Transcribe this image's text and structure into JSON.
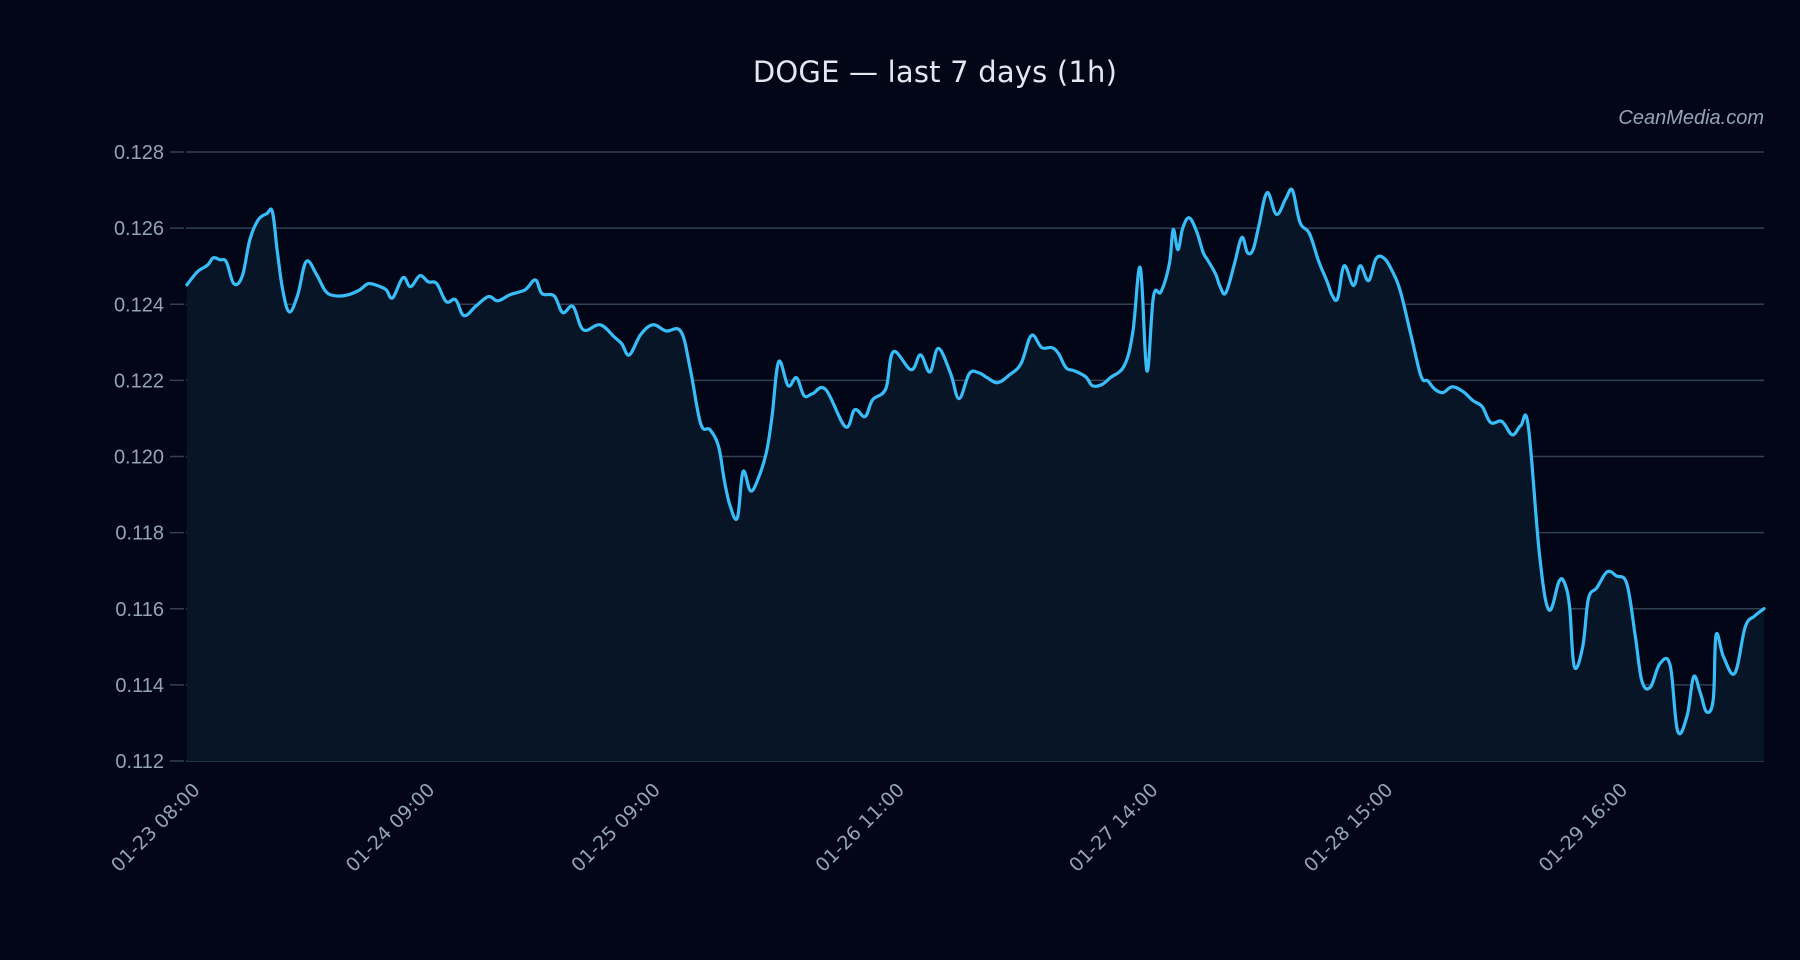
{
  "title": "DOGE — last 7 days (1h)",
  "watermark": "CeanMedia.com",
  "colors": {
    "background": "#020617",
    "line": "#38bdf8",
    "fill": "#081527",
    "grid": "#334155",
    "text": "#94a3b8",
    "title": "#e2e8f0"
  },
  "chart_data": {
    "type": "area",
    "title": "DOGE — last 7 days (1h)",
    "xlabel": "",
    "ylabel": "",
    "ylim": [
      0.112,
      0.128
    ],
    "yticks": [
      "0.112",
      "0.114",
      "0.116",
      "0.118",
      "0.120",
      "0.122",
      "0.124",
      "0.126",
      "0.128"
    ],
    "x_range_hours": [
      0,
      168
    ],
    "x_start": "01-23 08:00",
    "xticks": [
      {
        "label": "01-23 08:00",
        "hour": 0
      },
      {
        "label": "01-24 09:00",
        "hour": 25
      },
      {
        "label": "01-25 09:00",
        "hour": 49
      },
      {
        "label": "01-26 11:00",
        "hour": 75
      },
      {
        "label": "01-27 14:00",
        "hour": 102
      },
      {
        "label": "01-28 15:00",
        "hour": 127
      },
      {
        "label": "01-29 16:00",
        "hour": 152
      }
    ],
    "grid": true,
    "legend": "none",
    "series": [
      {
        "name": "DOGE",
        "hours": [
          0.1,
          1.2,
          2.3,
          2.9,
          3.6,
          4.3,
          5.1,
          6.0,
          6.8,
          7.7,
          8.6,
          9.2,
          9.7,
          10.3,
          11.0,
          11.9,
          12.8,
          13.9,
          14.9,
          16.0,
          17.3,
          18.5,
          19.4,
          20.4,
          21.3,
          22.0,
          23.1,
          23.9,
          24.9,
          25.8,
          26.7,
          27.7,
          28.7,
          29.6,
          30.9,
          32.2,
          33.2,
          34.5,
          36.1,
          37.2,
          37.9,
          39.2,
          40.1,
          41.2,
          42.3,
          44.1,
          45.6,
          46.4,
          47.2,
          48.4,
          49.7,
          51.1,
          52.7,
          53.7,
          54.8,
          55.8,
          56.7,
          57.3,
          57.9,
          58.7,
          59.3,
          60.1,
          60.9,
          61.8,
          62.4,
          63.1,
          64.1,
          65.0,
          65.8,
          66.7,
          68.1,
          70.2,
          71.2,
          72.3,
          73.1,
          74.5,
          75.3,
          77.2,
          78.2,
          79.2,
          80.1,
          81.4,
          82.3,
          83.4,
          84.4,
          85.3,
          86.4,
          87.6,
          88.9,
          90.0,
          91.1,
          92.2,
          92.9,
          93.7,
          94.6,
          95.8,
          96.5,
          97.5,
          98.4,
          99.9,
          100.8,
          101.6,
          102.3,
          103.0,
          103.8,
          104.7,
          105.1,
          105.6,
          106.1,
          106.8,
          107.6,
          108.3,
          108.8,
          109.6,
          110.1,
          110.7,
          111.6,
          112.4,
          113.0,
          113.6,
          114.2,
          115.1,
          116.1,
          117.1,
          117.8,
          118.6,
          119.6,
          120.6,
          121.5,
          122.0,
          122.6,
          123.3,
          124.3,
          125.0,
          125.9,
          126.7,
          127.6,
          128.5,
          129.3,
          130.5,
          131.5,
          132.2,
          132.9,
          133.8,
          134.8,
          136.0,
          137.0,
          138.0,
          138.9,
          140.1,
          141.2,
          142.1,
          142.9,
          144.1,
          145.1,
          146.2,
          146.8,
          147.3,
          147.8,
          148.7,
          149.3,
          150.2,
          151.3,
          152.3,
          153.4,
          154.3,
          155.0,
          155.9,
          156.9,
          158.0,
          158.8,
          159.8,
          160.5,
          161.2,
          161.9,
          162.6,
          162.9,
          163.7,
          164.9,
          166.0,
          167.0,
          168.0
        ],
        "values": [
          0.12451,
          0.12485,
          0.12503,
          0.12522,
          0.12517,
          0.12511,
          0.12454,
          0.12475,
          0.1257,
          0.12622,
          0.12638,
          0.12643,
          0.12543,
          0.12438,
          0.1238,
          0.12425,
          0.12512,
          0.12478,
          0.12433,
          0.12422,
          0.12425,
          0.12438,
          0.12454,
          0.12449,
          0.12438,
          0.12417,
          0.1247,
          0.12446,
          0.12475,
          0.12459,
          0.12454,
          0.12407,
          0.12412,
          0.1237,
          0.12396,
          0.1242,
          0.12409,
          0.12425,
          0.12438,
          0.12464,
          0.12428,
          0.12422,
          0.12378,
          0.12394,
          0.12333,
          0.12346,
          0.12314,
          0.12296,
          0.12267,
          0.1232,
          0.12346,
          0.1233,
          0.12328,
          0.12228,
          0.12086,
          0.1207,
          0.12026,
          0.11939,
          0.11873,
          0.11839,
          0.1196,
          0.1191,
          0.11941,
          0.12012,
          0.12107,
          0.12249,
          0.12186,
          0.12207,
          0.1216,
          0.12165,
          0.12176,
          0.12078,
          0.12123,
          0.12105,
          0.12149,
          0.12178,
          0.12275,
          0.12228,
          0.12267,
          0.12222,
          0.12284,
          0.12218,
          0.12152,
          0.12218,
          0.1222,
          0.12207,
          0.12194,
          0.12213,
          0.12244,
          0.12318,
          0.12286,
          0.12286,
          0.1227,
          0.12233,
          0.12225,
          0.12209,
          0.12186,
          0.12189,
          0.12207,
          0.12239,
          0.12326,
          0.12496,
          0.12225,
          0.12421,
          0.12433,
          0.12507,
          0.12596,
          0.12543,
          0.12599,
          0.12627,
          0.12591,
          0.12536,
          0.12515,
          0.1248,
          0.12446,
          0.1243,
          0.12504,
          0.12575,
          0.12536,
          0.12543,
          0.12604,
          0.12693,
          0.12636,
          0.12678,
          0.12699,
          0.12615,
          0.12586,
          0.12512,
          0.12459,
          0.12425,
          0.12415,
          0.12501,
          0.12449,
          0.12501,
          0.12462,
          0.1252,
          0.1252,
          0.12483,
          0.12433,
          0.1231,
          0.1221,
          0.12199,
          0.12178,
          0.12168,
          0.12183,
          0.1217,
          0.12147,
          0.12131,
          0.12089,
          0.12092,
          0.12057,
          0.12081,
          0.12081,
          0.11742,
          0.11597,
          0.11673,
          0.11665,
          0.11605,
          0.11448,
          0.115,
          0.11626,
          0.11655,
          0.11697,
          0.11686,
          0.11665,
          0.11528,
          0.1141,
          0.11394,
          0.11455,
          0.11452,
          0.11279,
          0.11318,
          0.11421,
          0.11381,
          0.11329,
          0.11363,
          0.11531,
          0.11473,
          0.11431,
          0.11552,
          0.11581,
          0.116
        ]
      }
    ]
  }
}
